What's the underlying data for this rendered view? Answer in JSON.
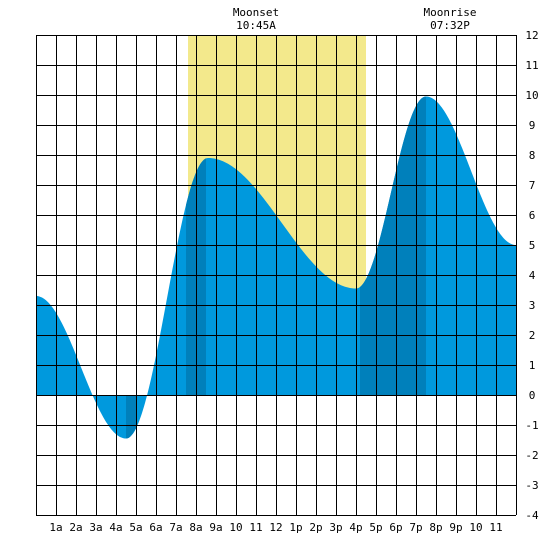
{
  "chart_data": {
    "type": "area",
    "x_unit": "hour of day",
    "ylim": [
      -4,
      12
    ],
    "xlim": [
      0,
      24
    ],
    "y_ticks": [
      "-4",
      "-3",
      "-2",
      "-1",
      "0",
      "1",
      "2",
      "3",
      "4",
      "5",
      "6",
      "7",
      "8",
      "9",
      "10",
      "11",
      "12"
    ],
    "x_tick_labels": [
      "1a",
      "2a",
      "3a",
      "4a",
      "5a",
      "6a",
      "7a",
      "8a",
      "9a",
      "10",
      "11",
      "12",
      "1p",
      "2p",
      "3p",
      "4p",
      "5p",
      "6p",
      "7p",
      "8p",
      "9p",
      "10",
      "11"
    ],
    "grid": true,
    "colors": {
      "fill": "#0099dd",
      "fill_dark": "#0080bb",
      "moon_band": "#f3e98c",
      "grid": "#000000"
    },
    "moon_band_hours": [
      7.6,
      16.5
    ],
    "dark_bands_hours": [
      [
        4.5,
        5.0
      ],
      [
        7.5,
        8.5
      ],
      [
        16.2,
        19.5
      ]
    ],
    "extremes": [
      {
        "x": 0.0,
        "y": 3.3
      },
      {
        "x": 4.5,
        "y": -1.45
      },
      {
        "x": 8.6,
        "y": 7.9
      },
      {
        "x": 16.0,
        "y": 3.55
      },
      {
        "x": 19.5,
        "y": 9.95
      },
      {
        "x": 24.0,
        "y": 5.0
      }
    ],
    "annotations": [
      {
        "title": "Moonset",
        "time": "10:45A",
        "x": 11.0
      },
      {
        "title": "Moonrise",
        "time": "07:32P",
        "x": 20.7
      }
    ]
  }
}
